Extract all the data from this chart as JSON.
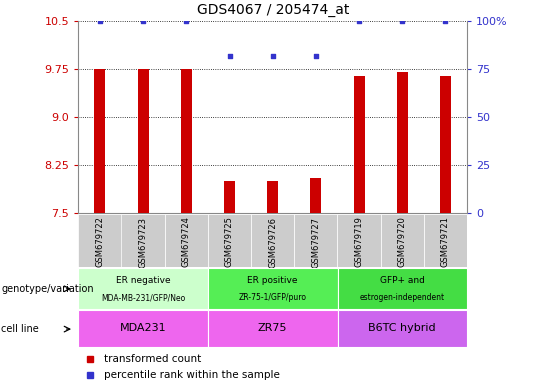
{
  "title": "GDS4067 / 205474_at",
  "samples": [
    "GSM679722",
    "GSM679723",
    "GSM679724",
    "GSM679725",
    "GSM679726",
    "GSM679727",
    "GSM679719",
    "GSM679720",
    "GSM679721"
  ],
  "bar_values": [
    9.75,
    9.75,
    9.75,
    8.0,
    8.0,
    8.05,
    9.65,
    9.7,
    9.65
  ],
  "percentile_values": [
    100,
    100,
    100,
    82,
    82,
    82,
    100,
    100,
    100
  ],
  "ylim_left": [
    7.5,
    10.5
  ],
  "ylim_right": [
    0,
    100
  ],
  "yticks_left": [
    7.5,
    8.25,
    9.0,
    9.75,
    10.5
  ],
  "yticks_right": [
    0,
    25,
    50,
    75,
    100
  ],
  "bar_color": "#cc0000",
  "dot_color": "#3333cc",
  "genotype_groups": [
    {
      "label": "ER negative",
      "sublabel": "MDA-MB-231/GFP/Neo",
      "start": 0,
      "end": 3,
      "color": "#ccffcc"
    },
    {
      "label": "ER positive",
      "sublabel": "ZR-75-1/GFP/puro",
      "start": 3,
      "end": 6,
      "color": "#55ee55"
    },
    {
      "label": "GFP+ and",
      "sublabel": "estrogen-independent",
      "start": 6,
      "end": 9,
      "color": "#44dd44"
    }
  ],
  "cell_line_groups": [
    {
      "label": "MDA231",
      "start": 0,
      "end": 3,
      "color": "#ee66ee"
    },
    {
      "label": "ZR75",
      "start": 3,
      "end": 6,
      "color": "#ee66ee"
    },
    {
      "label": "B6TC hybrid",
      "start": 6,
      "end": 9,
      "color": "#cc66ee"
    }
  ],
  "legend_items": [
    {
      "label": "transformed count",
      "color": "#cc0000"
    },
    {
      "label": "percentile rank within the sample",
      "color": "#3333cc"
    }
  ],
  "left_tick_color": "#cc0000",
  "right_tick_color": "#3333cc",
  "genotype_label": "genotype/variation",
  "cell_line_label": "cell line",
  "bar_width": 0.25,
  "xtick_bg_color": "#cccccc",
  "spine_color": "#888888"
}
